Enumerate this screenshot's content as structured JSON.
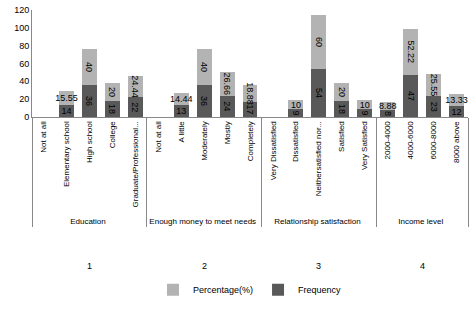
{
  "chart_data": {
    "type": "bar",
    "stacked": true,
    "data_labels": true,
    "grid": false,
    "legend": "bottom",
    "groups": [
      {
        "number": "1",
        "name": "Education",
        "categories": [
          "Not at all",
          "Elementary school",
          "High school",
          "College",
          "Graduate/Professional..."
        ]
      },
      {
        "number": "2",
        "name": "Enough money to meet needs",
        "categories": [
          "Not at all",
          "A little",
          "Moderately",
          "Mostly",
          "Completely"
        ]
      },
      {
        "number": "3",
        "name": "Relationship satisfaction",
        "categories": [
          "Very Dissatisfied",
          "Dissatisfied",
          "Neithersatisfied nor...",
          "Satisfied",
          "Very Satisfied"
        ]
      },
      {
        "number": "4",
        "name": "Income level",
        "categories": [
          "2000-4000",
          "4000-6000",
          "6000-8000",
          "8000 above"
        ]
      }
    ],
    "series": [
      {
        "name": "Frequency",
        "color": "#595959",
        "values": [
          0,
          14,
          36,
          18,
          22,
          0,
          13,
          36,
          24,
          17,
          0,
          9,
          54,
          18,
          9,
          8,
          47,
          23,
          12
        ]
      },
      {
        "name": "Percentage(%)",
        "color": "#b3b3b3",
        "values": [
          0,
          15.55,
          40,
          20,
          24.44,
          0,
          14.44,
          40,
          26.66,
          18.88,
          0,
          10,
          60,
          20,
          10,
          8.88,
          52.22,
          25.55,
          13.33
        ]
      }
    ],
    "ylim": [
      0,
      120
    ],
    "yticks": [
      0,
      20,
      40,
      60,
      80,
      100,
      120
    ]
  }
}
